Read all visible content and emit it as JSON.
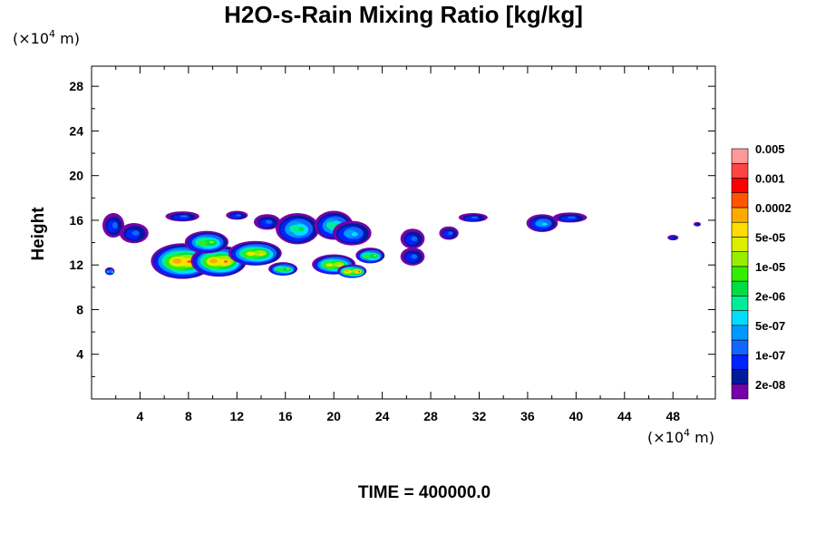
{
  "chart_data": {
    "type": "contour",
    "title": "H2O-s-Rain Mixing Ratio [kg/kg]",
    "ylabel": "Height",
    "x_unit": {
      "prefix": "(×10",
      "exp": "4",
      "suffix": " m)"
    },
    "y_unit": {
      "prefix": "(×10",
      "exp": "4",
      "suffix": " m)"
    },
    "xlim": [
      0,
      51.5
    ],
    "ylim": [
      0,
      29.8
    ],
    "x_ticks": [
      "4",
      "8",
      "12",
      "16",
      "20",
      "24",
      "28",
      "32",
      "36",
      "40",
      "44",
      "48"
    ],
    "y_ticks": [
      "4",
      "8",
      "12",
      "16",
      "20",
      "24",
      "28"
    ],
    "time_label": "TIME = 400000.0",
    "colorbar": {
      "colors": [
        "#7700aa",
        "#001a99",
        "#0022ff",
        "#1166ff",
        "#0099ff",
        "#00ddff",
        "#00ee99",
        "#00dd44",
        "#33ee00",
        "#99ee00",
        "#ddee00",
        "#ffdd00",
        "#ffaa00",
        "#ff5500",
        "#ff0000",
        "#ff4444",
        "#ff9999"
      ],
      "labels": [
        "2e-08",
        "1e-07",
        "5e-07",
        "2e-06",
        "1e-05",
        "5e-05",
        "0.0002",
        "0.001",
        "0.005"
      ]
    },
    "cells": [
      {
        "x": 1.8,
        "y": 15.5,
        "rx": 0.9,
        "ry": 1.1,
        "peak": 3
      },
      {
        "x": 3.5,
        "y": 14.8,
        "rx": 1.2,
        "ry": 0.9,
        "peak": 3
      },
      {
        "x": 1.5,
        "y": 11.4,
        "rx": 0.4,
        "ry": 0.35,
        "peak": 5
      },
      {
        "x": 7.5,
        "y": 12.3,
        "rx": 2.6,
        "ry": 1.6,
        "peak": 13
      },
      {
        "x": 10.5,
        "y": 12.3,
        "rx": 2.3,
        "ry": 1.4,
        "peak": 13
      },
      {
        "x": 9.5,
        "y": 14.0,
        "rx": 1.8,
        "ry": 1.0,
        "peak": 9
      },
      {
        "x": 13.5,
        "y": 13.0,
        "rx": 2.2,
        "ry": 1.1,
        "peak": 11
      },
      {
        "x": 15.8,
        "y": 11.6,
        "rx": 1.2,
        "ry": 0.6,
        "peak": 9
      },
      {
        "x": 17.0,
        "y": 15.2,
        "rx": 1.8,
        "ry": 1.4,
        "peak": 7
      },
      {
        "x": 20.0,
        "y": 15.5,
        "rx": 1.6,
        "ry": 1.3,
        "peak": 7
      },
      {
        "x": 21.5,
        "y": 14.8,
        "rx": 1.6,
        "ry": 1.1,
        "peak": 5
      },
      {
        "x": 20.0,
        "y": 12.0,
        "rx": 1.8,
        "ry": 0.9,
        "peak": 11
      },
      {
        "x": 21.5,
        "y": 11.4,
        "rx": 1.2,
        "ry": 0.6,
        "peak": 13
      },
      {
        "x": 23.0,
        "y": 12.8,
        "rx": 1.2,
        "ry": 0.7,
        "peak": 9
      },
      {
        "x": 7.5,
        "y": 16.3,
        "rx": 1.4,
        "ry": 0.45,
        "peak": 3
      },
      {
        "x": 12.0,
        "y": 16.4,
        "rx": 0.9,
        "ry": 0.4,
        "peak": 3
      },
      {
        "x": 14.5,
        "y": 15.8,
        "rx": 1.1,
        "ry": 0.7,
        "peak": 3
      },
      {
        "x": 26.5,
        "y": 14.3,
        "rx": 1.0,
        "ry": 0.9,
        "peak": 3
      },
      {
        "x": 26.5,
        "y": 12.7,
        "rx": 1.0,
        "ry": 0.8,
        "peak": 3
      },
      {
        "x": 29.5,
        "y": 14.8,
        "rx": 0.8,
        "ry": 0.6,
        "peak": 3
      },
      {
        "x": 31.5,
        "y": 16.2,
        "rx": 1.2,
        "ry": 0.4,
        "peak": 3
      },
      {
        "x": 37.2,
        "y": 15.7,
        "rx": 1.3,
        "ry": 0.8,
        "peak": 5
      },
      {
        "x": 39.5,
        "y": 16.2,
        "rx": 1.4,
        "ry": 0.45,
        "peak": 3
      },
      {
        "x": 48.0,
        "y": 14.4,
        "rx": 0.45,
        "ry": 0.25,
        "peak": 2
      },
      {
        "x": 50.0,
        "y": 15.6,
        "rx": 0.3,
        "ry": 0.2,
        "peak": 2
      }
    ]
  }
}
